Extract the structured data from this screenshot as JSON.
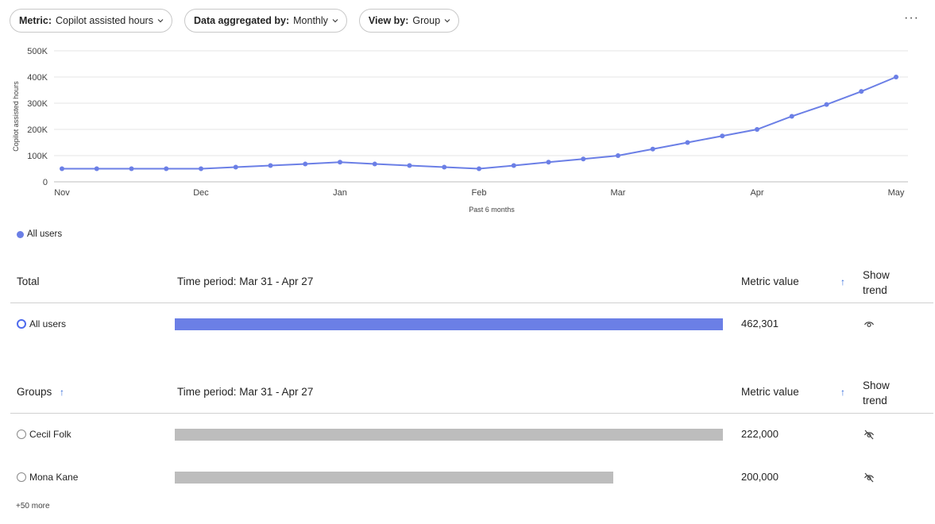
{
  "toolbar": {
    "metric": {
      "key": "Metric:",
      "value": "Copilot assisted hours"
    },
    "aggregated": {
      "key": "Data aggregated by:",
      "value": "Monthly"
    },
    "viewby": {
      "key": "View by:",
      "value": "Group"
    },
    "more": "···"
  },
  "chart_data": {
    "type": "line",
    "ylabel": "Copilot assisted hours",
    "xlabel": "Past 6 months",
    "ylim": [
      0,
      500000
    ],
    "yticks": [
      0,
      100000,
      200000,
      300000,
      400000,
      500000
    ],
    "ytick_labels": [
      "0",
      "100K",
      "200K",
      "300K",
      "400K",
      "500K"
    ],
    "xtick_labels": [
      "Nov",
      "Dec",
      "Jan",
      "Feb",
      "Mar",
      "Apr",
      "May"
    ],
    "grid": true,
    "series": [
      {
        "name": "All users",
        "color": "#6b7fe6",
        "values": [
          50000,
          50000,
          50000,
          50000,
          50000,
          56000,
          62000,
          68000,
          75000,
          68000,
          62000,
          56000,
          50000,
          62000,
          75000,
          87000,
          100000,
          125000,
          150000,
          175000,
          200000,
          250000,
          295000,
          345000,
          400000
        ]
      }
    ]
  },
  "legend": {
    "label": "All users",
    "color": "#6b7fe6"
  },
  "total_table": {
    "header": {
      "name": "Total",
      "period": "Time period: Mar 31 - Apr 27",
      "metric": "Metric value",
      "sort": "↑",
      "trend": "Show trend"
    },
    "rows": [
      {
        "name": "All users",
        "value_text": "462,301",
        "value": 462301,
        "fill": 1.0,
        "color": "#6b7fe6"
      }
    ]
  },
  "groups_table": {
    "header": {
      "name": "Groups",
      "name_sort": "↑",
      "period": "Time period: Mar 31 - Apr 27",
      "metric": "Metric value",
      "sort": "↑",
      "trend": "Show trend"
    },
    "rows": [
      {
        "name": "Cecil Folk",
        "value_text": "222,000",
        "value": 222000,
        "fill": 1.0,
        "color": "#bdbdbd"
      },
      {
        "name": "Mona Kane",
        "value_text": "200,000",
        "value": 200000,
        "fill": 0.8,
        "color": "#bdbdbd"
      }
    ],
    "more": "+50 more"
  }
}
